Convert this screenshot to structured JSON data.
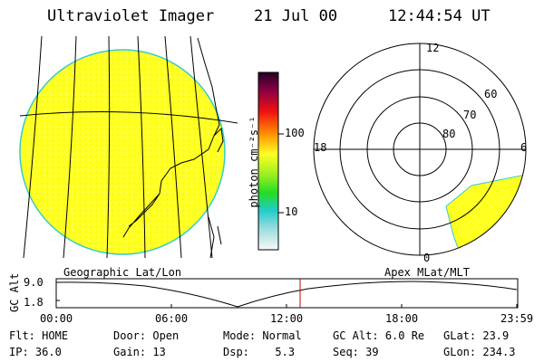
{
  "header": {
    "title": "Ultraviolet Imager",
    "date": "21 Jul 00",
    "time": "12:44:54 UT"
  },
  "colorbar": {
    "unit_label": "photon cm⁻²s⁻¹",
    "ticks": [
      "100",
      "10"
    ]
  },
  "polar_plot": {
    "mlt_labels": [
      "12",
      "18",
      "6",
      "0"
    ],
    "lat_labels": [
      "60",
      "70",
      "80"
    ]
  },
  "altitude_plot": {
    "y_axis_title": "GC Alt",
    "y_max": "9.0",
    "y_min": "1.8",
    "left_caption": "Geographic Lat/Lon",
    "right_caption": "Apex MLat/MLT",
    "x_ticks": [
      "00:00",
      "06:00",
      "12:00",
      "18:00",
      "23:59"
    ]
  },
  "status": {
    "flt_label": "Flt:",
    "flt_value": "HOME",
    "door_label": "Door:",
    "door_value": "Open",
    "mode_label": "Mode:",
    "mode_value": "Normal",
    "gcalt_label": "GC Alt:",
    "gcalt_value": "6.0 Re",
    "glat_label": "GLat:",
    "glat_value": "23.9",
    "ip_label": "IP:",
    "ip_value": "36.0",
    "gain_label": "Gain:",
    "gain_value": "13",
    "dsp_label": "Dsp:",
    "dsp_value": "5.3",
    "seq_label": "Seq:",
    "seq_value": "39",
    "glon_label": "GLon:",
    "glon_value": "234.3"
  },
  "colors": {
    "image_fill": "#ffff22",
    "image_edge": "#33cccc",
    "marker": "#cc0000"
  }
}
